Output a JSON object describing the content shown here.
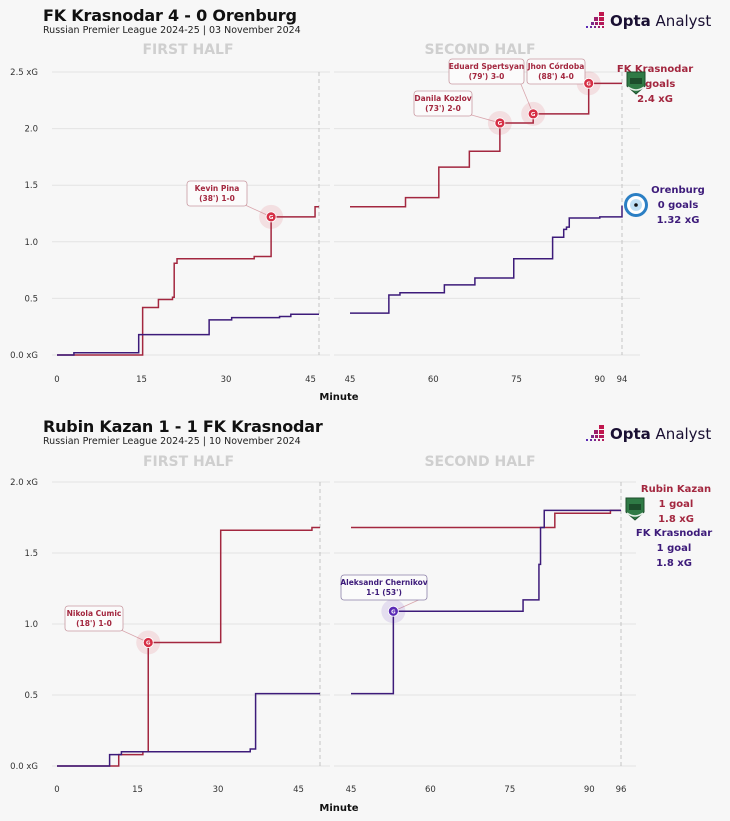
{
  "brand": {
    "logo_bold": "Opta",
    "logo_light": " Analyst",
    "colors": {
      "home_red": "#a3273f",
      "away_purple": "#3d1b7a",
      "goal_red": "#d62f45",
      "goal_purple": "#5a2ab5",
      "gridline": "#e3e3e3",
      "half_label": "#cfcfcf"
    }
  },
  "chart_data": [
    {
      "type": "line",
      "title": "FK Krasnodar 4 - 0 Orenburg",
      "subtitle": "Russian Premier League 2024-25 | 03 November 2024",
      "xlabel": "Minute",
      "ylabel": "xG",
      "halves": [
        "FIRST HALF",
        "SECOND HALF"
      ],
      "ylim": [
        0,
        2.5
      ],
      "yticks": [
        0.0,
        0.5,
        1.0,
        1.5,
        2.0,
        2.5
      ],
      "ytick_labels": [
        "0.0 xG",
        "0.5",
        "1.0",
        "1.5",
        "2.0",
        "2.5 xG"
      ],
      "first_half_xlim": [
        0,
        46.5
      ],
      "second_half_xlim": [
        45,
        94
      ],
      "first_half_xticks": [
        "0",
        "15",
        "30",
        "45"
      ],
      "second_half_xticks": [
        "45",
        "60",
        "75",
        "90",
        "94"
      ],
      "first_half_end": 46.5,
      "second_half_end": 94,
      "series": [
        {
          "name": "FK Krasnodar",
          "goals_label": "4 goals",
          "xg_label": "2.4 xG",
          "color": "#a3273f",
          "first_half": [
            [
              0,
              0
            ],
            [
              15.2,
              0.42
            ],
            [
              18,
              0.49
            ],
            [
              20.5,
              0.51
            ],
            [
              20.8,
              0.81
            ],
            [
              21.3,
              0.85
            ],
            [
              35,
              0.87
            ],
            [
              38,
              1.22
            ],
            [
              45.8,
              1.31
            ]
          ],
          "first_half_end_value": 1.31,
          "second_half": [
            [
              45,
              1.31
            ],
            [
              55,
              1.39
            ],
            [
              61,
              1.66
            ],
            [
              66.5,
              1.8
            ],
            [
              72,
              2.05
            ],
            [
              78,
              2.13
            ],
            [
              88,
              2.4
            ]
          ],
          "second_half_end_value": 2.4
        },
        {
          "name": "Orenburg",
          "goals_label": "0 goals",
          "xg_label": "1.32 xG",
          "color": "#3d1b7a",
          "first_half": [
            [
              0,
              0
            ],
            [
              3,
              0.02
            ],
            [
              14.5,
              0.18
            ],
            [
              27,
              0.31
            ],
            [
              31,
              0.33
            ],
            [
              39.5,
              0.34
            ],
            [
              41.5,
              0.36
            ]
          ],
          "first_half_end_value": 0.36,
          "second_half": [
            [
              45,
              0.37
            ],
            [
              52,
              0.53
            ],
            [
              54,
              0.55
            ],
            [
              62,
              0.62
            ],
            [
              67.5,
              0.68
            ],
            [
              74.5,
              0.85
            ],
            [
              81.5,
              1.04
            ],
            [
              83.5,
              1.11
            ],
            [
              84,
              1.13
            ],
            [
              84.5,
              1.21
            ],
            [
              90,
              1.22
            ],
            [
              94,
              1.32
            ]
          ],
          "second_half_end_value": 1.32
        }
      ],
      "annotations": [
        {
          "player": "Kevin Pina",
          "detail": "(38') 1-0",
          "minute": 38,
          "xg": 1.22,
          "team": 0,
          "half": 1
        },
        {
          "player": "Danila Kozlov",
          "detail": "(73') 2-0",
          "minute": 72,
          "xg": 2.05,
          "team": 0,
          "half": 2
        },
        {
          "player": "Eduard Spertsyan",
          "detail": "(79') 3-0",
          "minute": 78,
          "xg": 2.13,
          "team": 0,
          "half": 2
        },
        {
          "player": "Jhon Córdoba",
          "detail": "(88') 4-0",
          "minute": 88,
          "xg": 2.4,
          "team": 0,
          "half": 2
        }
      ]
    },
    {
      "type": "line",
      "title": "Rubin Kazan 1 - 1 FK Krasnodar",
      "subtitle": "Russian Premier League 2024-25 | 10 November 2024",
      "xlabel": "Minute",
      "ylabel": "xG",
      "halves": [
        "FIRST HALF",
        "SECOND HALF"
      ],
      "ylim": [
        0,
        2.0
      ],
      "yticks": [
        0.0,
        0.5,
        1.0,
        1.5,
        2.0
      ],
      "ytick_labels": [
        "0.0 xG",
        "0.5",
        "1.0",
        "1.5",
        "2.0 xG"
      ],
      "first_half_xlim": [
        0,
        49
      ],
      "second_half_xlim": [
        45,
        96
      ],
      "first_half_xticks": [
        "0",
        "15",
        "30",
        "45"
      ],
      "second_half_xticks": [
        "45",
        "60",
        "75",
        "90",
        "96"
      ],
      "first_half_end": 49,
      "second_half_end": 96,
      "series": [
        {
          "name": "Rubin Kazan",
          "goals_label": "1 goal",
          "xg_label": "1.8 xG",
          "color": "#a3273f",
          "first_half": [
            [
              0,
              0
            ],
            [
              11.5,
              0.08
            ],
            [
              16,
              0.1
            ],
            [
              17,
              0.87
            ],
            [
              30.5,
              1.66
            ],
            [
              47.5,
              1.68
            ]
          ],
          "first_half_end_value": 1.68,
          "second_half": [
            [
              45,
              1.68
            ],
            [
              79,
              1.68
            ],
            [
              83.5,
              1.78
            ],
            [
              94,
              1.8
            ]
          ],
          "second_half_end_value": 1.8
        },
        {
          "name": "FK Krasnodar",
          "goals_label": "1 goal",
          "xg_label": "1.8 xG",
          "color": "#3d1b7a",
          "first_half": [
            [
              0,
              0
            ],
            [
              9.8,
              0.08
            ],
            [
              12,
              0.1
            ],
            [
              36,
              0.12
            ],
            [
              37,
              0.51
            ]
          ],
          "first_half_end_value": 0.51,
          "second_half": [
            [
              45,
              0.51
            ],
            [
              53,
              1.09
            ],
            [
              77.5,
              1.17
            ],
            [
              80.5,
              1.42
            ],
            [
              80.8,
              1.68
            ],
            [
              81.5,
              1.8
            ]
          ],
          "second_half_end_value": 1.8
        }
      ],
      "annotations": [
        {
          "player": "Nikola Cumic",
          "detail": "(18') 1-0",
          "minute": 17,
          "xg": 0.87,
          "team": 0,
          "half": 1
        },
        {
          "player": "Aleksandr Chernikov",
          "detail": "1-1 (53')",
          "minute": 53,
          "xg": 1.09,
          "team": 1,
          "half": 2
        }
      ]
    }
  ]
}
